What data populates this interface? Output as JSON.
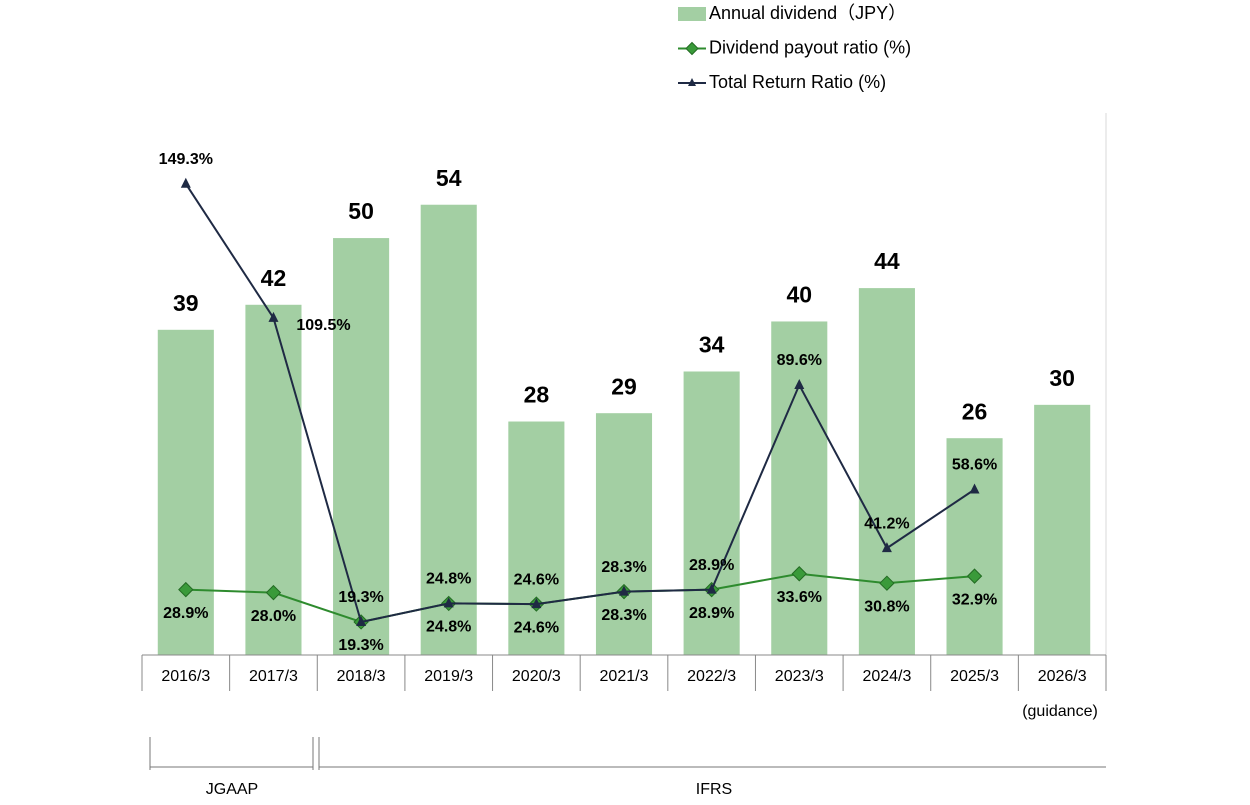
{
  "chart_data": {
    "type": "bar_line",
    "categories": [
      "2016/3",
      "2017/3",
      "2018/3",
      "2019/3",
      "2020/3",
      "2021/3",
      "2022/3",
      "2023/3",
      "2024/3",
      "2025/3",
      "2026/3"
    ],
    "annotations": [
      "(guidance)"
    ],
    "groups": [
      "JGAAP",
      "IFRS"
    ],
    "ylim": [
      0,
      65
    ],
    "y2lim": [
      9.5,
      170.3
    ],
    "series": [
      {
        "name": "Annual dividend（JPY）",
        "type": "bar",
        "color": "#a3cfa3",
        "values": [
          39,
          42,
          50,
          54,
          28,
          29,
          34,
          40,
          44,
          26,
          30
        ]
      },
      {
        "name": "Dividend payout ratio (%)",
        "type": "line",
        "axis": "y2",
        "color": "#2e8b2e",
        "marker": "diamond",
        "values": [
          28.9,
          28.0,
          19.3,
          24.8,
          24.6,
          28.3,
          28.9,
          33.6,
          30.8,
          32.9,
          null
        ],
        "value_labels": [
          "28.9%",
          "28.0%",
          "19.3%",
          "24.8%",
          "24.6%",
          "28.3%",
          "28.9%",
          "33.6%",
          "30.8%",
          "32.9%",
          null
        ]
      },
      {
        "name": "Total Return Ratio (%)",
        "type": "line",
        "axis": "y2",
        "color": "#1f2a44",
        "marker": "triangle",
        "values": [
          149.3,
          109.5,
          19.3,
          24.8,
          24.6,
          28.3,
          28.9,
          89.6,
          41.2,
          58.6,
          null
        ],
        "value_labels": [
          "149.3%",
          "109.5%",
          "19.3%",
          "24.8%",
          "24.6%",
          "28.3%",
          "28.9%",
          "89.6%",
          "41.2%",
          "58.6%",
          null
        ]
      }
    ]
  }
}
